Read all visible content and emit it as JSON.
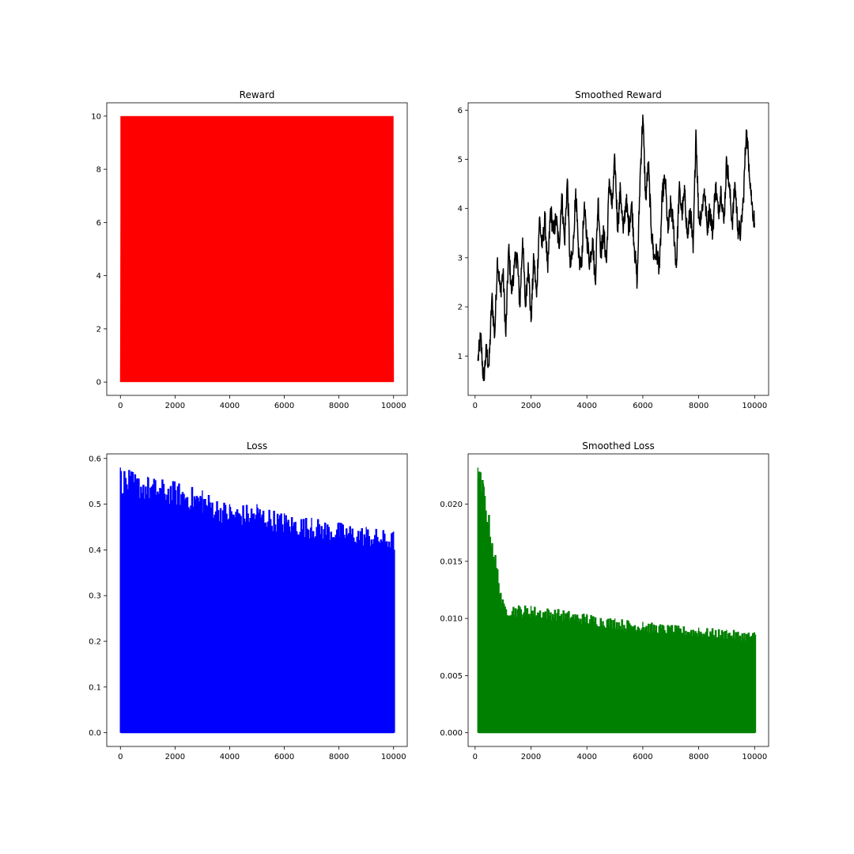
{
  "chart_data": [
    {
      "type": "line",
      "title": "Reward",
      "color": "#ff0000",
      "xlim": [
        -500,
        10500
      ],
      "ylim": [
        -0.5,
        10.5
      ],
      "x_ticks": [
        0,
        2000,
        4000,
        6000,
        8000,
        10000
      ],
      "x_tick_labels": [
        "0",
        "2000",
        "4000",
        "6000",
        "8000",
        "10000"
      ],
      "y_ticks": [
        0,
        2,
        4,
        6,
        8,
        10
      ],
      "y_tick_labels": [
        "0",
        "2",
        "4",
        "6",
        "8",
        "10"
      ],
      "note_values": "binary reward per episode, alternating between 0 and 10 across episodes 0-10000",
      "x": [
        0,
        10000
      ],
      "low": 0,
      "high": 10
    },
    {
      "type": "line",
      "title": "Smoothed Reward",
      "color": "#000000",
      "xlim": [
        -250,
        10500
      ],
      "ylim": [
        0.2,
        6.15
      ],
      "x_ticks": [
        0,
        2000,
        4000,
        6000,
        8000,
        10000
      ],
      "x_tick_labels": [
        "0",
        "2000",
        "4000",
        "6000",
        "8000",
        "10000"
      ],
      "y_ticks": [
        1,
        2,
        3,
        4,
        5,
        6
      ],
      "y_tick_labels": [
        "1",
        "2",
        "3",
        "4",
        "5",
        "6"
      ],
      "x": [
        100,
        200,
        300,
        400,
        500,
        600,
        700,
        800,
        900,
        1000,
        1100,
        1200,
        1300,
        1400,
        1500,
        1600,
        1700,
        1800,
        1900,
        2000,
        2100,
        2200,
        2300,
        2400,
        2500,
        2600,
        2700,
        2800,
        2900,
        3000,
        3100,
        3200,
        3300,
        3400,
        3500,
        3600,
        3700,
        3800,
        3900,
        4000,
        4100,
        4200,
        4300,
        4400,
        4500,
        4600,
        4700,
        4800,
        4900,
        5000,
        5100,
        5200,
        5300,
        5400,
        5500,
        5600,
        5700,
        5800,
        5900,
        6000,
        6100,
        6200,
        6300,
        6400,
        6500,
        6600,
        6700,
        6800,
        6900,
        7000,
        7100,
        7200,
        7300,
        7400,
        7500,
        7600,
        7700,
        7800,
        7900,
        8000,
        8100,
        8200,
        8300,
        8400,
        8500,
        8600,
        8700,
        8800,
        8900,
        9000,
        9100,
        9200,
        9300,
        9400,
        9500,
        9600,
        9700,
        9800,
        9900,
        10000
      ],
      "y": [
        0.9,
        1.4,
        0.5,
        1.1,
        0.8,
        2.2,
        1.4,
        3.0,
        2.3,
        2.7,
        1.4,
        3.2,
        2.3,
        2.8,
        3.1,
        2.0,
        3.4,
        2.0,
        2.9,
        1.7,
        3.0,
        2.2,
        3.8,
        3.2,
        3.8,
        2.7,
        4.0,
        3.5,
        3.8,
        3.2,
        4.3,
        3.3,
        4.6,
        2.8,
        3.1,
        4.4,
        3.0,
        2.8,
        4.0,
        3.4,
        2.9,
        3.4,
        2.5,
        4.2,
        3.1,
        3.5,
        2.9,
        4.6,
        4.0,
        5.0,
        3.6,
        4.4,
        3.5,
        4.2,
        3.6,
        4.1,
        3.2,
        2.5,
        4.6,
        5.9,
        4.2,
        4.9,
        3.6,
        3.0,
        3.1,
        2.8,
        4.3,
        4.6,
        3.5,
        4.1,
        3.6,
        2.8,
        4.4,
        3.9,
        4.3,
        3.4,
        4.0,
        3.1,
        5.6,
        3.8,
        3.9,
        4.4,
        3.6,
        4.0,
        3.5,
        4.5,
        3.9,
        4.4,
        3.7,
        5.0,
        4.4,
        3.7,
        4.5,
        3.6,
        3.5,
        4.2,
        5.6,
        4.9,
        4.1,
        3.7
      ]
    },
    {
      "type": "bar",
      "title": "Loss",
      "color": "#0000ff",
      "xlim": [
        -500,
        10500
      ],
      "ylim": [
        -0.03,
        0.61
      ],
      "x_ticks": [
        0,
        2000,
        4000,
        6000,
        8000,
        10000
      ],
      "x_tick_labels": [
        "0",
        "2000",
        "4000",
        "6000",
        "8000",
        "10000"
      ],
      "y_ticks": [
        0.0,
        0.1,
        0.2,
        0.3,
        0.4,
        0.5,
        0.6
      ],
      "y_tick_labels": [
        "0.0",
        "0.1",
        "0.2",
        "0.3",
        "0.4",
        "0.5",
        "0.6"
      ],
      "x": [
        0,
        1000,
        2000,
        3000,
        4000,
        5000,
        6000,
        7000,
        8000,
        9000,
        10000
      ],
      "y": [
        0.58,
        0.56,
        0.55,
        0.53,
        0.5,
        0.5,
        0.48,
        0.47,
        0.46,
        0.45,
        0.44
      ]
    },
    {
      "type": "bar",
      "title": "Smoothed Loss",
      "color": "#008000",
      "xlim": [
        -250,
        10500
      ],
      "ylim": [
        -0.0012,
        0.0244
      ],
      "x_ticks": [
        0,
        2000,
        4000,
        6000,
        8000,
        10000
      ],
      "x_tick_labels": [
        "0",
        "2000",
        "4000",
        "6000",
        "8000",
        "10000"
      ],
      "y_ticks": [
        0.0,
        0.005,
        0.01,
        0.015,
        0.02
      ],
      "y_tick_labels": [
        "0.000",
        "0.005",
        "0.010",
        "0.015",
        "0.020"
      ],
      "x": [
        100,
        200,
        300,
        1000,
        2000,
        3000,
        4000,
        5000,
        6000,
        7000,
        8000,
        9000,
        10000
      ],
      "y": [
        0.0232,
        0.0228,
        0.0218,
        0.0113,
        0.0111,
        0.0108,
        0.0104,
        0.01,
        0.0097,
        0.0094,
        0.0092,
        0.009,
        0.0088
      ]
    }
  ]
}
